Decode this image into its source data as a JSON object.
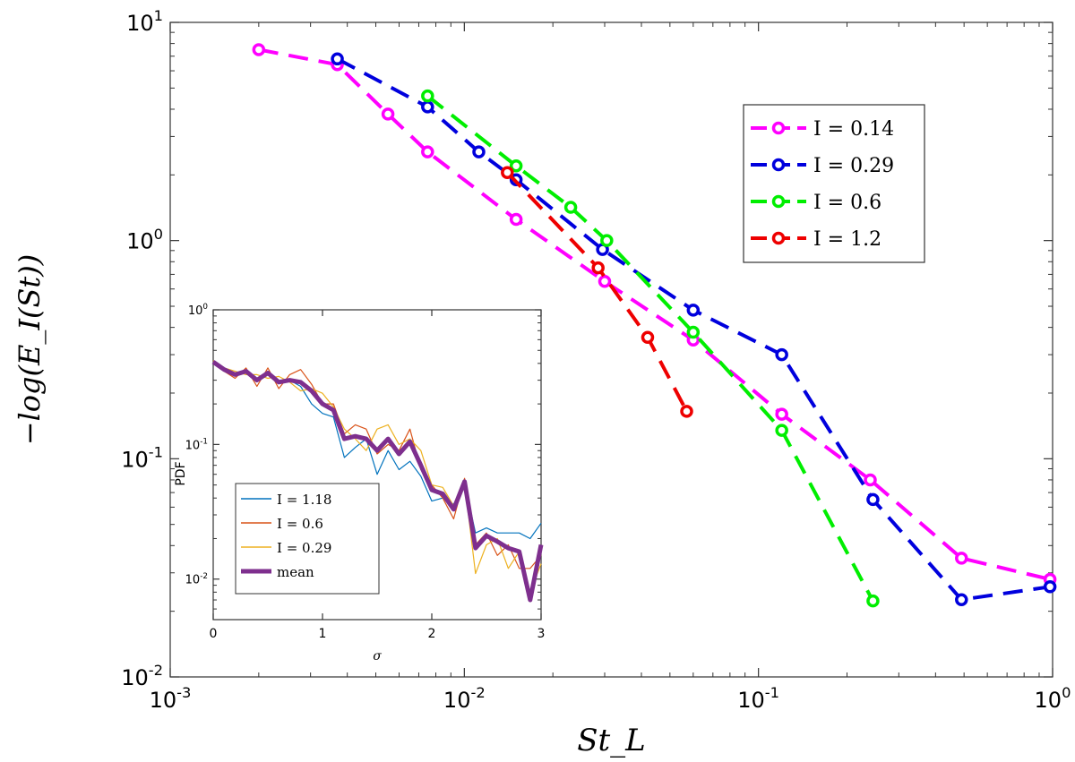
{
  "chart_data": [
    {
      "type": "line",
      "id": "main",
      "xscale": "log",
      "yscale": "log",
      "xlim": [
        0.001,
        1
      ],
      "ylim": [
        0.01,
        10
      ],
      "xlabel": "St_L",
      "ylabel": "−log(E_I(St))",
      "grid": false,
      "legend_position": "top-right",
      "x_ticks": [
        {
          "value": 0.001,
          "base": "10",
          "exp": "-3"
        },
        {
          "value": 0.01,
          "base": "10",
          "exp": "-2"
        },
        {
          "value": 0.1,
          "base": "10",
          "exp": "-1"
        },
        {
          "value": 1,
          "base": "10",
          "exp": "0"
        }
      ],
      "y_ticks": [
        {
          "value": 0.01,
          "base": "10",
          "exp": "-2"
        },
        {
          "value": 0.1,
          "base": "10",
          "exp": "-1"
        },
        {
          "value": 1,
          "base": "10",
          "exp": "0"
        },
        {
          "value": 10,
          "base": "10",
          "exp": "1"
        }
      ],
      "series": [
        {
          "name": "I = 0.14",
          "color": "#ff00ff",
          "x": [
            0.002,
            0.0037,
            0.0055,
            0.0075,
            0.015,
            0.03,
            0.06,
            0.12,
            0.24,
            0.49,
            0.98
          ],
          "y": [
            7.5,
            6.4,
            3.8,
            2.55,
            1.25,
            0.65,
            0.35,
            0.16,
            0.08,
            0.035,
            0.028
          ]
        },
        {
          "name": "I = 0.29",
          "color": "#0000dd",
          "x": [
            0.0037,
            0.0075,
            0.0112,
            0.015,
            0.0295,
            0.06,
            0.12,
            0.245,
            0.49,
            0.98
          ],
          "y": [
            6.8,
            4.1,
            2.55,
            1.9,
            0.91,
            0.48,
            0.3,
            0.065,
            0.0226,
            0.0259
          ]
        },
        {
          "name": "I = 0.6",
          "color": "#00ee00",
          "x": [
            0.0075,
            0.015,
            0.023,
            0.0305,
            0.06,
            0.12,
            0.245
          ],
          "y": [
            4.6,
            2.2,
            1.42,
            1.0,
            0.38,
            0.135,
            0.0223
          ]
        },
        {
          "name": "I = 1.2",
          "color": "#ee0000",
          "x": [
            0.014,
            0.0285,
            0.042,
            0.057
          ],
          "y": [
            2.05,
            0.75,
            0.36,
            0.165
          ]
        }
      ]
    },
    {
      "type": "line",
      "id": "inset",
      "xscale": "linear",
      "yscale": "log",
      "xlim": [
        0,
        3
      ],
      "ylim": [
        0.005,
        1
      ],
      "xlabel": "σ",
      "ylabel": "PDF",
      "grid": false,
      "legend_position": "bottom-left",
      "x_ticks": [
        {
          "value": 0,
          "label": "0"
        },
        {
          "value": 1,
          "label": "1"
        },
        {
          "value": 2,
          "label": "2"
        },
        {
          "value": 3,
          "label": "3"
        }
      ],
      "y_ticks": [
        {
          "value": 1,
          "base": "10",
          "exp": "0"
        },
        {
          "value": 0.1,
          "base": "10",
          "exp": "-1"
        },
        {
          "value": 0.01,
          "base": "10",
          "exp": "-2"
        }
      ],
      "series": [
        {
          "name": "I = 1.18",
          "color": "#0072bd",
          "width": 1.2,
          "x": [
            0,
            0.1,
            0.2,
            0.3,
            0.4,
            0.5,
            0.6,
            0.7,
            0.8,
            0.9,
            1.0,
            1.1,
            1.2,
            1.3,
            1.4,
            1.5,
            1.6,
            1.7,
            1.8,
            1.9,
            2.0,
            2.1,
            2.2,
            2.3,
            2.4,
            2.5,
            2.6,
            2.7,
            2.8,
            2.9,
            3.0
          ],
          "y": [
            0.41,
            0.36,
            0.34,
            0.34,
            0.3,
            0.35,
            0.29,
            0.3,
            0.27,
            0.2,
            0.17,
            0.16,
            0.08,
            0.095,
            0.11,
            0.06,
            0.09,
            0.065,
            0.075,
            0.058,
            0.038,
            0.04,
            0.036,
            0.052,
            0.022,
            0.024,
            0.022,
            0.022,
            0.022,
            0.02,
            0.026
          ]
        },
        {
          "name": "I = 0.6",
          "color": "#d95319",
          "width": 1.2,
          "x": [
            0,
            0.1,
            0.2,
            0.3,
            0.4,
            0.5,
            0.6,
            0.7,
            0.8,
            0.9,
            1.0,
            1.1,
            1.2,
            1.3,
            1.4,
            1.5,
            1.6,
            1.7,
            1.8,
            1.9,
            2.0,
            2.1,
            2.2,
            2.3,
            2.4,
            2.5,
            2.6,
            2.7,
            2.8,
            2.9,
            3.0
          ],
          "y": [
            0.42,
            0.35,
            0.31,
            0.37,
            0.27,
            0.37,
            0.26,
            0.33,
            0.36,
            0.28,
            0.2,
            0.2,
            0.12,
            0.14,
            0.13,
            0.085,
            0.1,
            0.09,
            0.13,
            0.065,
            0.05,
            0.04,
            0.028,
            0.056,
            0.018,
            0.022,
            0.015,
            0.018,
            0.012,
            0.012,
            0.015
          ]
        },
        {
          "name": "I = 0.29",
          "color": "#edb120",
          "width": 1.2,
          "x": [
            0,
            0.1,
            0.2,
            0.3,
            0.4,
            0.5,
            0.6,
            0.7,
            0.8,
            0.9,
            1.0,
            1.1,
            1.2,
            1.3,
            1.4,
            1.5,
            1.6,
            1.7,
            1.8,
            1.9,
            2.0,
            2.1,
            2.2,
            2.3,
            2.4,
            2.5,
            2.6,
            2.7,
            2.8,
            2.9,
            3.0
          ],
          "y": [
            0.4,
            0.37,
            0.35,
            0.33,
            0.33,
            0.31,
            0.32,
            0.29,
            0.25,
            0.26,
            0.24,
            0.19,
            0.13,
            0.11,
            0.09,
            0.13,
            0.14,
            0.1,
            0.11,
            0.09,
            0.05,
            0.048,
            0.035,
            0.052,
            0.011,
            0.018,
            0.02,
            0.012,
            0.016,
            0.008,
            0.013
          ]
        },
        {
          "name": "mean",
          "color": "#7e2f8e",
          "width": 5,
          "x": [
            0,
            0.1,
            0.2,
            0.3,
            0.4,
            0.5,
            0.6,
            0.7,
            0.8,
            0.9,
            1.0,
            1.1,
            1.2,
            1.3,
            1.4,
            1.5,
            1.6,
            1.7,
            1.8,
            1.9,
            2.0,
            2.1,
            2.2,
            2.3,
            2.4,
            2.5,
            2.6,
            2.7,
            2.8,
            2.9,
            3.0
          ],
          "y": [
            0.41,
            0.36,
            0.33,
            0.35,
            0.3,
            0.34,
            0.29,
            0.3,
            0.29,
            0.25,
            0.2,
            0.18,
            0.11,
            0.115,
            0.11,
            0.09,
            0.11,
            0.085,
            0.105,
            0.07,
            0.046,
            0.043,
            0.033,
            0.053,
            0.017,
            0.021,
            0.019,
            0.017,
            0.016,
            0.007,
            0.018
          ]
        }
      ]
    }
  ]
}
